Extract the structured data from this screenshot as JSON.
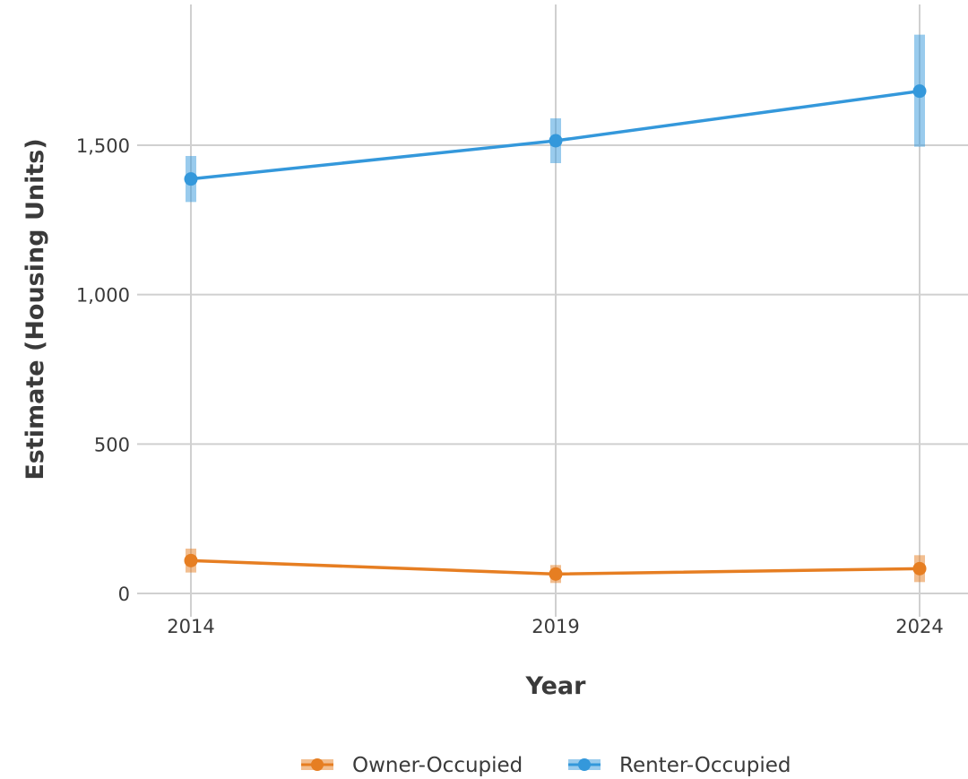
{
  "chart_data": {
    "type": "line",
    "title": "",
    "xlabel": "Year",
    "ylabel": "Estimate (Housing Units)",
    "categories": [
      "2014",
      "2019",
      "2024"
    ],
    "y_ticks": [
      0,
      500,
      1000,
      1500
    ],
    "y_tick_labels": [
      "0",
      "500",
      "1,000",
      "1,500"
    ],
    "ylim": [
      -50,
      1960
    ],
    "grid": true,
    "legend_position": "bottom",
    "series": [
      {
        "name": "Owner-Occupied",
        "color": "#e67e22",
        "values": [
          110,
          65,
          83
        ],
        "lower": [
          70,
          35,
          38
        ],
        "upper": [
          150,
          95,
          128
        ]
      },
      {
        "name": "Renter-Occupied",
        "color": "#3498db",
        "values": [
          1387,
          1515,
          1681
        ],
        "lower": [
          1310,
          1440,
          1495
        ],
        "upper": [
          1464,
          1590,
          1870
        ]
      }
    ]
  }
}
